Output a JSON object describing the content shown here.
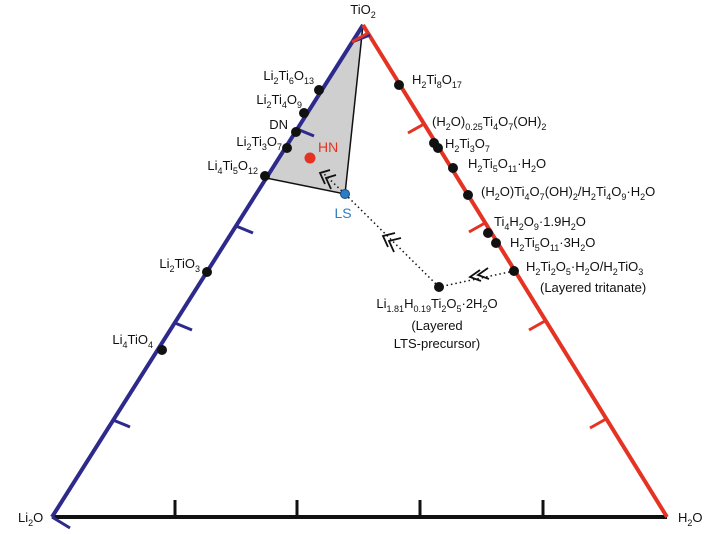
{
  "vertices": [
    {
      "label": [
        "TiO",
        "2"
      ]
    },
    {
      "label": [
        "Li",
        "2",
        "O"
      ]
    },
    {
      "label": [
        "H",
        "2",
        "O"
      ]
    }
  ],
  "phases": [
    {
      "label": [
        "Li",
        "2",
        "Ti",
        "6",
        "O",
        "13"
      ]
    },
    {
      "label": [
        "Li",
        "2",
        "Ti",
        "4",
        "O",
        "9"
      ]
    },
    {
      "label": [
        "DN"
      ]
    },
    {
      "label": [
        "Li",
        "2",
        "Ti",
        "3",
        "O",
        "7"
      ]
    },
    {
      "label": [
        "Li",
        "4",
        "Ti",
        "5",
        "O",
        "12"
      ]
    },
    {
      "label": [
        "Li",
        "2",
        "TiO",
        "3"
      ]
    },
    {
      "label": [
        "Li",
        "4",
        "TiO",
        "4"
      ]
    },
    {
      "label": [
        "H",
        "2",
        "Ti",
        "8",
        "O",
        "17"
      ]
    },
    {
      "label": [
        "(H",
        "2",
        "O)",
        "0.25",
        "Ti",
        "4",
        "O",
        "7",
        "(OH)",
        "2"
      ]
    },
    {
      "label": [
        "H",
        "2",
        "Ti",
        "3",
        "O",
        "7"
      ]
    },
    {
      "label": [
        "H",
        "2",
        "Ti",
        "5",
        "O",
        "11",
        "·H",
        "2",
        "O"
      ]
    },
    {
      "label": [
        "(H",
        "2",
        "O)Ti",
        "4",
        "O",
        "7",
        "(OH)",
        "2",
        "/H",
        "2",
        "Ti",
        "4",
        "O",
        "9",
        "·H",
        "2",
        "O"
      ]
    },
    {
      "label": [
        "Ti",
        "4",
        "H",
        "2",
        "O",
        "9",
        "·1.9H",
        "2",
        "O"
      ]
    },
    {
      "label": [
        "H",
        "2",
        "Ti",
        "5",
        "O",
        "11",
        "·3H",
        "2",
        "O"
      ]
    },
    {
      "label": [
        "H",
        "2",
        "Ti",
        "2",
        "O",
        "5",
        "·H",
        "2",
        "O/H",
        "2",
        "TiO",
        "3"
      ],
      "note": [
        "(Layered tritanate)"
      ]
    },
    {
      "label": [
        "Li",
        "1.81",
        "H",
        "0.19",
        "Ti",
        "2",
        "O",
        "5",
        "·2H",
        "2",
        "O"
      ],
      "note": [
        "(Layered",
        "LTS-precursor)"
      ]
    }
  ],
  "markers": [
    {
      "label": [
        "HN"
      ],
      "color": "#e53323"
    },
    {
      "label": [
        "LS"
      ],
      "color": "#2f7dc1"
    }
  ]
}
